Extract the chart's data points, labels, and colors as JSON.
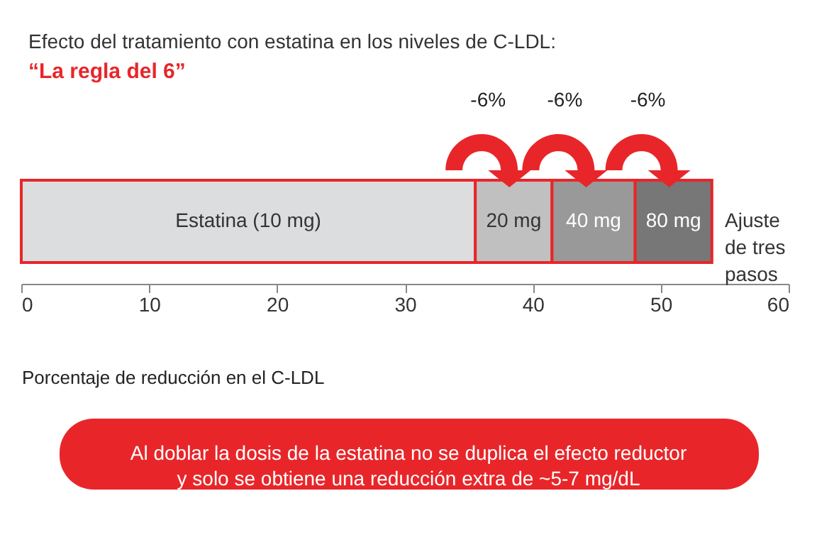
{
  "chart_data": {
    "type": "bar",
    "orientation": "horizontal",
    "stacked": true,
    "title": "Efecto del tratamiento con estatina en los niveles de C-LDL:",
    "subtitle": "“La regla del 6”",
    "xlabel": "Porcentaje de reducción en el C-LDL",
    "categories": [
      null
    ],
    "series": [
      {
        "name": "Estatina (10 mg)",
        "color": "#dcdddf",
        "values": [
          35.5
        ]
      },
      {
        "name": "20 mg",
        "color": "#c0c0c0",
        "values": [
          6
        ]
      },
      {
        "name": "40 mg",
        "color": "#999999",
        "values": [
          6.5
        ]
      },
      {
        "name": "80 mg",
        "color": "#777777",
        "values": [
          6
        ]
      }
    ],
    "xlim": [
      0,
      60
    ],
    "xticks": [
      0,
      10,
      20,
      30,
      40,
      50,
      60
    ],
    "grid": false,
    "legend": false,
    "annotations": [
      "-6%",
      "-6%",
      "-6%",
      "Ajuste\nde tres\npasos",
      "Al doblar la dosis de la estatina no se duplica el efecto reductor\ny solo se obtiene una reducción extra de ~5-7 mg/dL"
    ]
  }
}
